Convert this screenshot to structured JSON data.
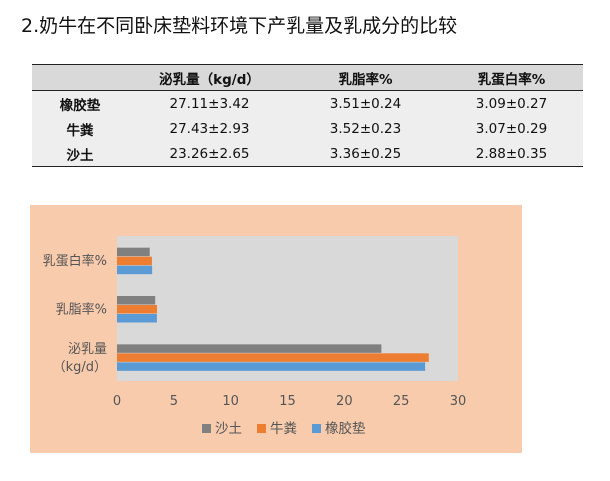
{
  "heading": "2.奶牛在不同卧床垫料环境下产乳量及乳成分的比较",
  "table": {
    "columns": [
      "",
      "泌乳量（kg/d）",
      "乳脂率%",
      "乳蛋白率%"
    ],
    "rows": [
      [
        "橡胶垫",
        "27.11±3.42",
        "3.51±0.24",
        "3.09±0.27"
      ],
      [
        "牛粪",
        "27.43±2.93",
        "3.52±0.23",
        "3.07±0.29"
      ],
      [
        "沙土",
        "23.26±2.65",
        "3.36±0.25",
        "2.88±0.35"
      ]
    ]
  },
  "chart_data": {
    "type": "bar",
    "orientation": "horizontal",
    "categories": [
      "乳蛋白率%",
      "乳脂率%",
      "泌乳量\n（kg/d）"
    ],
    "series": [
      {
        "name": "沙土",
        "color": "#808080",
        "values": [
          2.88,
          3.36,
          23.26
        ]
      },
      {
        "name": "牛粪",
        "color": "#ed7d31",
        "values": [
          3.07,
          3.52,
          27.43
        ]
      },
      {
        "name": "橡胶垫",
        "color": "#5b9bd5",
        "values": [
          3.09,
          3.51,
          27.11
        ]
      }
    ],
    "xlim": [
      0,
      30
    ],
    "xticks": [
      0,
      5,
      10,
      15,
      20,
      25,
      30
    ],
    "grid": false,
    "legend_position": "bottom",
    "plot_background": "#d9d9d9",
    "chart_background": "#f8cbad"
  }
}
